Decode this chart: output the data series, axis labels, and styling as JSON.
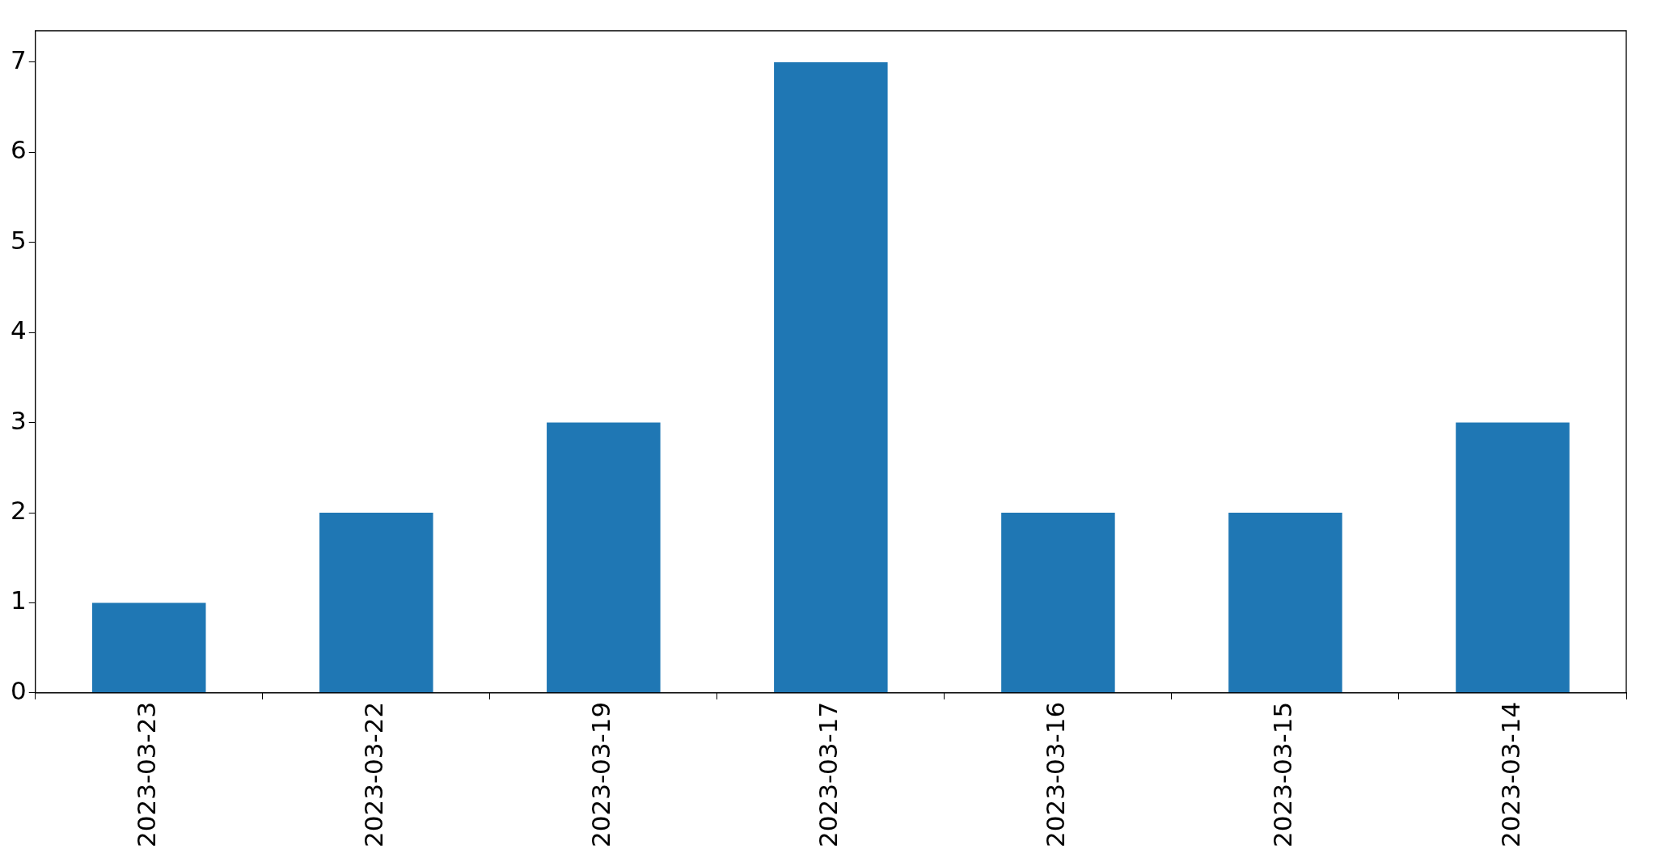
{
  "chart_data": {
    "type": "bar",
    "categories": [
      "2023-03-23",
      "2023-03-22",
      "2023-03-19",
      "2023-03-17",
      "2023-03-16",
      "2023-03-15",
      "2023-03-14"
    ],
    "values": [
      1,
      2,
      3,
      7,
      2,
      2,
      3
    ],
    "color": "#1f77b4",
    "ylim": [
      0,
      7.35
    ],
    "yticks": [
      0,
      1,
      2,
      3,
      4,
      5,
      6,
      7
    ],
    "grid": false
  }
}
